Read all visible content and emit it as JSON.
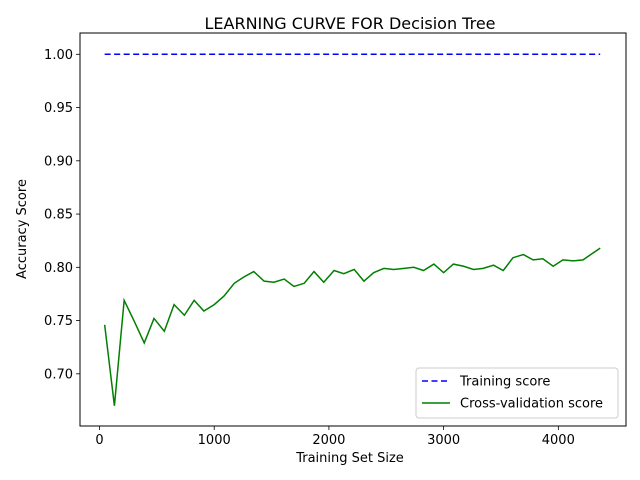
{
  "chart_data": {
    "type": "line",
    "title": "LEARNING CURVE FOR Decision Tree",
    "xlabel": "Training Set Size",
    "ylabel": "Accuracy Score",
    "xlim": [
      -170,
      4590
    ],
    "ylim": [
      0.651,
      1.02
    ],
    "xticks": [
      0,
      1000,
      2000,
      3000,
      4000
    ],
    "xtick_labels": [
      "0",
      "1000",
      "2000",
      "3000",
      "4000"
    ],
    "yticks": [
      0.7,
      0.75,
      0.8,
      0.85,
      0.9,
      0.95,
      1.0
    ],
    "ytick_labels": [
      "0.70",
      "0.75",
      "0.80",
      "0.85",
      "0.90",
      "0.95",
      "1.00"
    ],
    "grid": false,
    "legend_position": "lower-right",
    "series": [
      {
        "name": "Training score",
        "color": "#0000ff",
        "style": "dashed",
        "x": [
          45,
          4365
        ],
        "y": [
          1.0,
          1.0
        ]
      },
      {
        "name": "Cross-validation score",
        "color": "#008000",
        "style": "solid",
        "x": [
          45,
          130,
          215,
          300,
          390,
          475,
          565,
          650,
          740,
          825,
          910,
          1000,
          1085,
          1175,
          1260,
          1345,
          1435,
          1520,
          1610,
          1695,
          1785,
          1870,
          1955,
          2045,
          2130,
          2220,
          2305,
          2390,
          2480,
          2565,
          2655,
          2740,
          2825,
          2915,
          3000,
          3085,
          3175,
          3260,
          3345,
          3435,
          3520,
          3605,
          3695,
          3780,
          3865,
          3955,
          4040,
          4130,
          4215,
          4365
        ],
        "y": [
          0.746,
          0.67,
          0.769,
          0.75,
          0.729,
          0.752,
          0.74,
          0.765,
          0.755,
          0.769,
          0.759,
          0.765,
          0.773,
          0.785,
          0.791,
          0.796,
          0.787,
          0.786,
          0.789,
          0.782,
          0.785,
          0.796,
          0.786,
          0.797,
          0.794,
          0.798,
          0.787,
          0.795,
          0.799,
          0.798,
          0.799,
          0.8,
          0.797,
          0.803,
          0.795,
          0.803,
          0.801,
          0.798,
          0.799,
          0.802,
          0.797,
          0.809,
          0.812,
          0.807,
          0.808,
          0.801,
          0.807,
          0.806,
          0.807,
          0.818
        ]
      }
    ]
  }
}
